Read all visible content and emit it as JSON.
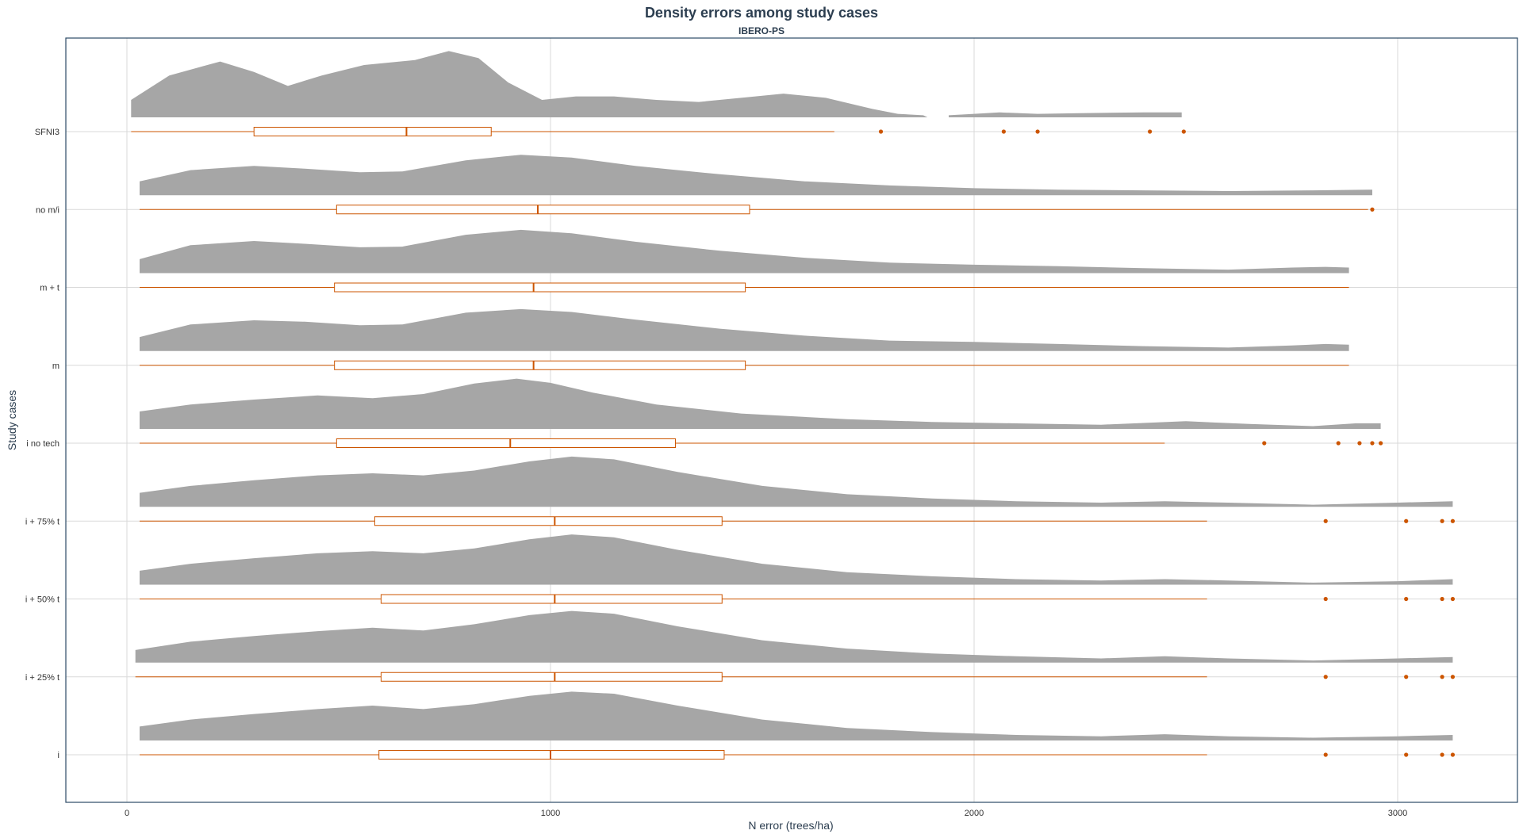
{
  "chart_data": {
    "type": "density-ridge-with-boxplot",
    "title": "Density errors among study cases",
    "subtitle": "IBERO-PS",
    "xlabel": "N error (trees/ha)",
    "ylabel": "Study cases",
    "xlim": [
      -150,
      3290
    ],
    "xticks": [
      0,
      1000,
      2000,
      3000
    ],
    "grid": true,
    "colors": {
      "density": "#a6a6a6",
      "box": "#cc5500",
      "frame": "#2c4a66",
      "grid": "#d9d9d9",
      "title": "#2c3e50"
    },
    "categories": [
      "SFNI3",
      "no m/i",
      "m + t",
      "m",
      "i no tech",
      "i + 75% t",
      "i + 50% t",
      "i + 25% t",
      "i"
    ],
    "series": [
      {
        "case": "SFNI3",
        "density": [
          [
            10,
            0.25
          ],
          [
            100,
            0.6
          ],
          [
            220,
            0.8
          ],
          [
            300,
            0.65
          ],
          [
            380,
            0.45
          ],
          [
            460,
            0.6
          ],
          [
            560,
            0.75
          ],
          [
            680,
            0.82
          ],
          [
            760,
            0.95
          ],
          [
            830,
            0.85
          ],
          [
            900,
            0.5
          ],
          [
            980,
            0.25
          ],
          [
            1060,
            0.3
          ],
          [
            1150,
            0.3
          ],
          [
            1250,
            0.25
          ],
          [
            1350,
            0.22
          ],
          [
            1450,
            0.28
          ],
          [
            1550,
            0.34
          ],
          [
            1650,
            0.28
          ],
          [
            1760,
            0.12
          ],
          [
            1820,
            0.05
          ],
          [
            1880,
            0.03
          ],
          [
            1890,
            0
          ],
          [
            1930,
            0
          ],
          [
            1940,
            0.03
          ],
          [
            2000,
            0.05
          ],
          [
            2060,
            0.07
          ],
          [
            2150,
            0.05
          ],
          [
            2250,
            0.06
          ],
          [
            2400,
            0.07
          ],
          [
            2490,
            0.07
          ]
        ],
        "box": {
          "whisker_low": 10,
          "q1": 300,
          "median": 660,
          "q3": 860,
          "whisker_high": 1670
        },
        "outliers": [
          1780,
          2070,
          2150,
          2415,
          2495
        ]
      },
      {
        "case": "no m/i",
        "density": [
          [
            30,
            0.2
          ],
          [
            150,
            0.36
          ],
          [
            300,
            0.42
          ],
          [
            420,
            0.38
          ],
          [
            550,
            0.33
          ],
          [
            650,
            0.34
          ],
          [
            800,
            0.5
          ],
          [
            930,
            0.58
          ],
          [
            1050,
            0.54
          ],
          [
            1200,
            0.42
          ],
          [
            1400,
            0.3
          ],
          [
            1600,
            0.2
          ],
          [
            1800,
            0.14
          ],
          [
            2000,
            0.1
          ],
          [
            2200,
            0.08
          ],
          [
            2400,
            0.07
          ],
          [
            2600,
            0.06
          ],
          [
            2800,
            0.07
          ],
          [
            2930,
            0.08
          ],
          [
            2940,
            0.08
          ]
        ],
        "box": {
          "whisker_low": 30,
          "q1": 495,
          "median": 970,
          "q3": 1470,
          "whisker_high": 2930
        },
        "outliers": [
          2940
        ]
      },
      {
        "case": "m + t",
        "density": [
          [
            30,
            0.2
          ],
          [
            150,
            0.4
          ],
          [
            300,
            0.46
          ],
          [
            420,
            0.42
          ],
          [
            550,
            0.37
          ],
          [
            650,
            0.38
          ],
          [
            800,
            0.55
          ],
          [
            930,
            0.62
          ],
          [
            1050,
            0.57
          ],
          [
            1200,
            0.45
          ],
          [
            1400,
            0.32
          ],
          [
            1600,
            0.22
          ],
          [
            1800,
            0.15
          ],
          [
            2000,
            0.12
          ],
          [
            2200,
            0.1
          ],
          [
            2400,
            0.07
          ],
          [
            2600,
            0.05
          ],
          [
            2750,
            0.08
          ],
          [
            2830,
            0.09
          ],
          [
            2885,
            0.08
          ]
        ],
        "box": {
          "whisker_low": 30,
          "q1": 490,
          "median": 960,
          "q3": 1460,
          "whisker_high": 2885
        },
        "outliers": []
      },
      {
        "case": "m",
        "density": [
          [
            30,
            0.2
          ],
          [
            150,
            0.38
          ],
          [
            300,
            0.44
          ],
          [
            420,
            0.42
          ],
          [
            550,
            0.37
          ],
          [
            650,
            0.38
          ],
          [
            800,
            0.55
          ],
          [
            930,
            0.6
          ],
          [
            1050,
            0.56
          ],
          [
            1200,
            0.45
          ],
          [
            1400,
            0.32
          ],
          [
            1600,
            0.22
          ],
          [
            1800,
            0.15
          ],
          [
            2000,
            0.13
          ],
          [
            2200,
            0.1
          ],
          [
            2400,
            0.07
          ],
          [
            2600,
            0.05
          ],
          [
            2750,
            0.08
          ],
          [
            2830,
            0.1
          ],
          [
            2885,
            0.09
          ]
        ],
        "box": {
          "whisker_low": 30,
          "q1": 490,
          "median": 960,
          "q3": 1460,
          "whisker_high": 2885
        },
        "outliers": []
      },
      {
        "case": "i no tech",
        "density": [
          [
            30,
            0.25
          ],
          [
            150,
            0.35
          ],
          [
            300,
            0.42
          ],
          [
            450,
            0.48
          ],
          [
            580,
            0.44
          ],
          [
            700,
            0.5
          ],
          [
            820,
            0.65
          ],
          [
            920,
            0.72
          ],
          [
            1000,
            0.66
          ],
          [
            1100,
            0.52
          ],
          [
            1250,
            0.35
          ],
          [
            1450,
            0.22
          ],
          [
            1700,
            0.14
          ],
          [
            1900,
            0.1
          ],
          [
            2100,
            0.08
          ],
          [
            2300,
            0.06
          ],
          [
            2500,
            0.11
          ],
          [
            2650,
            0.07
          ],
          [
            2800,
            0.04
          ],
          [
            2900,
            0.08
          ],
          [
            2960,
            0.08
          ]
        ],
        "box": {
          "whisker_low": 30,
          "q1": 495,
          "median": 905,
          "q3": 1295,
          "whisker_high": 2450
        },
        "outliers": [
          2685,
          2860,
          2910,
          2940,
          2960
        ]
      },
      {
        "case": "i + 75% t",
        "density": [
          [
            30,
            0.2
          ],
          [
            150,
            0.3
          ],
          [
            300,
            0.38
          ],
          [
            450,
            0.45
          ],
          [
            580,
            0.48
          ],
          [
            700,
            0.45
          ],
          [
            820,
            0.52
          ],
          [
            950,
            0.65
          ],
          [
            1050,
            0.72
          ],
          [
            1150,
            0.68
          ],
          [
            1300,
            0.5
          ],
          [
            1500,
            0.3
          ],
          [
            1700,
            0.18
          ],
          [
            1900,
            0.12
          ],
          [
            2100,
            0.08
          ],
          [
            2300,
            0.06
          ],
          [
            2450,
            0.08
          ],
          [
            2600,
            0.06
          ],
          [
            2800,
            0.03
          ],
          [
            3000,
            0.06
          ],
          [
            3130,
            0.08
          ]
        ],
        "box": {
          "whisker_low": 30,
          "q1": 585,
          "median": 1010,
          "q3": 1405,
          "whisker_high": 2550
        },
        "outliers": [
          2830,
          3020,
          3105,
          3130
        ]
      },
      {
        "case": "i + 50% t",
        "density": [
          [
            30,
            0.2
          ],
          [
            150,
            0.3
          ],
          [
            300,
            0.38
          ],
          [
            450,
            0.45
          ],
          [
            580,
            0.48
          ],
          [
            700,
            0.45
          ],
          [
            820,
            0.52
          ],
          [
            950,
            0.65
          ],
          [
            1050,
            0.72
          ],
          [
            1150,
            0.68
          ],
          [
            1300,
            0.5
          ],
          [
            1500,
            0.3
          ],
          [
            1700,
            0.18
          ],
          [
            1900,
            0.12
          ],
          [
            2100,
            0.08
          ],
          [
            2300,
            0.06
          ],
          [
            2450,
            0.08
          ],
          [
            2600,
            0.06
          ],
          [
            2800,
            0.03
          ],
          [
            3000,
            0.05
          ],
          [
            3130,
            0.08
          ]
        ],
        "box": {
          "whisker_low": 30,
          "q1": 600,
          "median": 1010,
          "q3": 1405,
          "whisker_high": 2550
        },
        "outliers": [
          2830,
          3020,
          3105,
          3130
        ]
      },
      {
        "case": "i + 25% t",
        "density": [
          [
            20,
            0.18
          ],
          [
            150,
            0.3
          ],
          [
            300,
            0.38
          ],
          [
            450,
            0.45
          ],
          [
            580,
            0.5
          ],
          [
            700,
            0.46
          ],
          [
            820,
            0.55
          ],
          [
            950,
            0.68
          ],
          [
            1050,
            0.74
          ],
          [
            1150,
            0.7
          ],
          [
            1300,
            0.52
          ],
          [
            1500,
            0.32
          ],
          [
            1700,
            0.2
          ],
          [
            1900,
            0.13
          ],
          [
            2100,
            0.09
          ],
          [
            2300,
            0.06
          ],
          [
            2450,
            0.09
          ],
          [
            2600,
            0.06
          ],
          [
            2800,
            0.03
          ],
          [
            3000,
            0.06
          ],
          [
            3130,
            0.08
          ]
        ],
        "box": {
          "whisker_low": 20,
          "q1": 600,
          "median": 1010,
          "q3": 1405,
          "whisker_high": 2550
        },
        "outliers": [
          2830,
          3020,
          3105,
          3130
        ]
      },
      {
        "case": "i",
        "density": [
          [
            30,
            0.2
          ],
          [
            150,
            0.3
          ],
          [
            300,
            0.38
          ],
          [
            450,
            0.45
          ],
          [
            580,
            0.5
          ],
          [
            700,
            0.45
          ],
          [
            820,
            0.52
          ],
          [
            950,
            0.64
          ],
          [
            1050,
            0.7
          ],
          [
            1150,
            0.67
          ],
          [
            1300,
            0.5
          ],
          [
            1500,
            0.3
          ],
          [
            1700,
            0.18
          ],
          [
            1900,
            0.12
          ],
          [
            2100,
            0.08
          ],
          [
            2300,
            0.06
          ],
          [
            2450,
            0.09
          ],
          [
            2600,
            0.06
          ],
          [
            2800,
            0.04
          ],
          [
            3000,
            0.06
          ],
          [
            3130,
            0.08
          ]
        ],
        "box": {
          "whisker_low": 30,
          "q1": 595,
          "median": 1000,
          "q3": 1410,
          "whisker_high": 2550
        },
        "outliers": [
          2830,
          3020,
          3105,
          3130
        ]
      }
    ]
  }
}
